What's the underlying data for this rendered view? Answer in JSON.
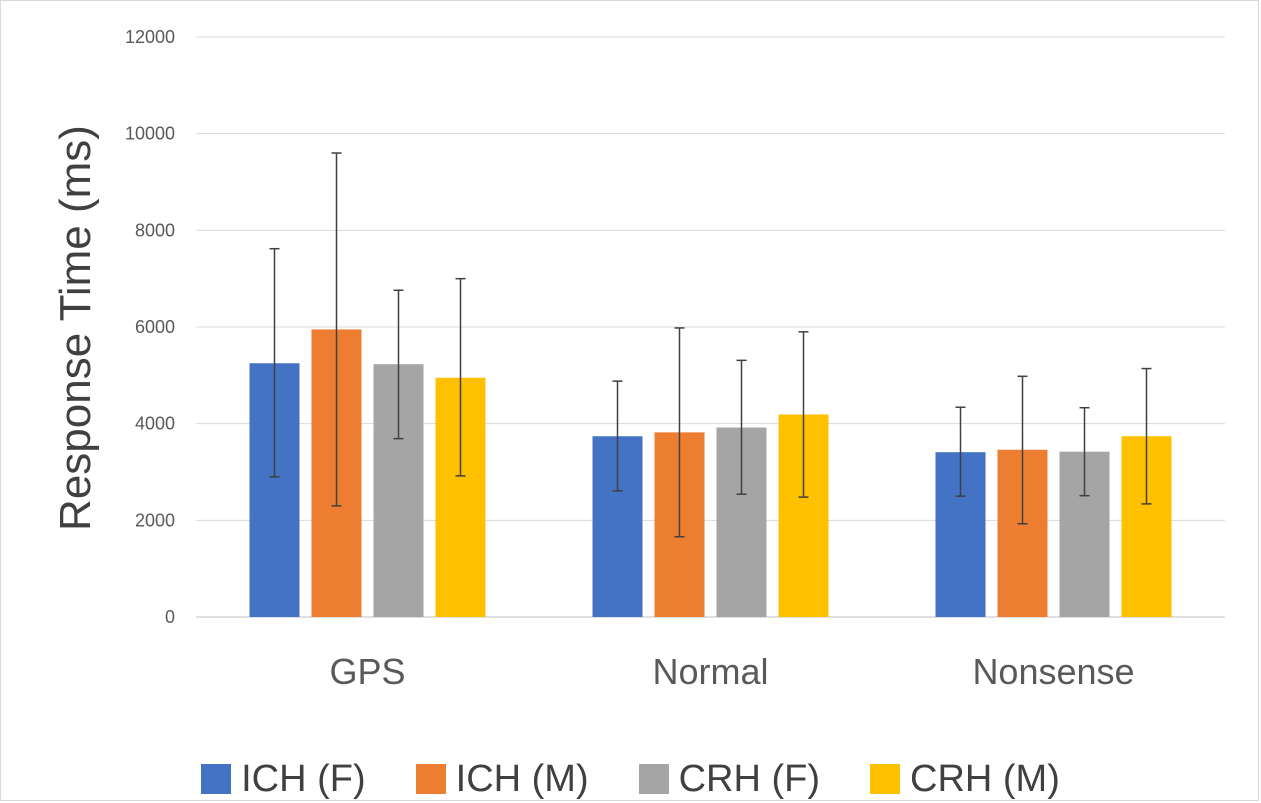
{
  "chart_data": {
    "type": "bar",
    "title": "",
    "xlabel": "",
    "ylabel": "Response Time (ms)",
    "ylim": [
      0,
      12000
    ],
    "yticks": [
      0,
      2000,
      4000,
      6000,
      8000,
      10000,
      12000
    ],
    "grid": true,
    "legend_position": "bottom",
    "categories": [
      "GPS",
      "Normal",
      "Nonsense"
    ],
    "series": [
      {
        "name": "ICH (F)",
        "color": "#4472C4",
        "values": [
          5250,
          3740,
          3410
        ],
        "error_low": [
          2900,
          2610,
          2500
        ],
        "error_high": [
          7620,
          4880,
          4340
        ]
      },
      {
        "name": "ICH (M)",
        "color": "#ED7D31",
        "values": [
          5950,
          3820,
          3460
        ],
        "error_low": [
          2300,
          1660,
          1930
        ],
        "error_high": [
          9600,
          5980,
          4980
        ]
      },
      {
        "name": "CRH (F)",
        "color": "#A5A5A5",
        "values": [
          5230,
          3920,
          3420
        ],
        "error_low": [
          3690,
          2540,
          2510
        ],
        "error_high": [
          6760,
          5310,
          4330
        ]
      },
      {
        "name": "CRH (M)",
        "color": "#FFC000",
        "values": [
          4950,
          4190,
          3740
        ],
        "error_low": [
          2920,
          2480,
          2340
        ],
        "error_high": [
          7000,
          5900,
          5140
        ]
      }
    ]
  }
}
